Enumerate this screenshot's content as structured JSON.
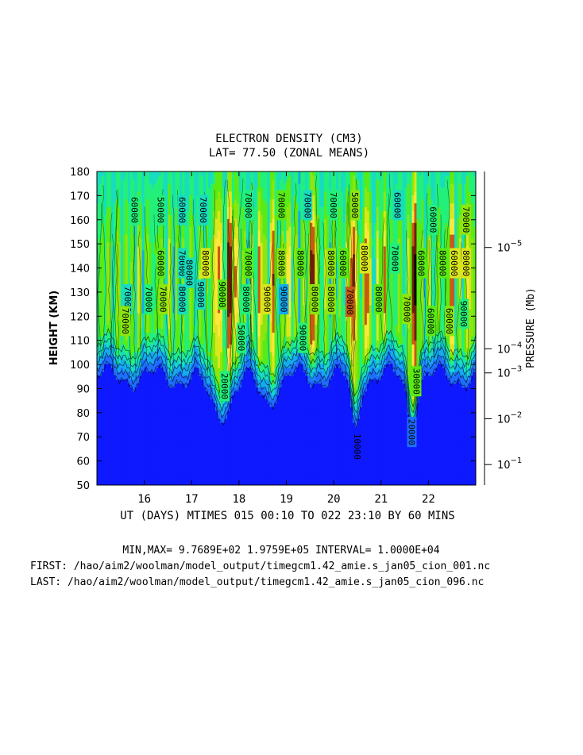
{
  "chart_data": {
    "type": "heatmap",
    "title": "ELECTRON DENSITY (CM3)",
    "subtitle": "LAT= 77.50 (ZONAL MEANS)",
    "xlabel": "UT (DAYS) MTIMES 015 00:10 TO 022 23:10 BY    60 MINS",
    "ylabel": "HEIGHT (KM)",
    "y2label": "PRESSURE (Mb)",
    "xlim": [
      15.0,
      23.0
    ],
    "ylim": [
      50,
      180
    ],
    "x_ticks": [
      16,
      17,
      18,
      19,
      20,
      21,
      22
    ],
    "y_ticks": [
      50,
      60,
      70,
      80,
      90,
      100,
      110,
      120,
      130,
      140,
      150,
      160,
      170,
      180
    ],
    "pressure_ticks": [
      {
        "base": "10",
        "exp": "−5",
        "height": 148.5
      },
      {
        "base": "10",
        "exp": "−4",
        "height": 106.5
      },
      {
        "base": "10",
        "exp": "−3",
        "height": 96.5
      },
      {
        "base": "10",
        "exp": "−2",
        "height": 77.5
      },
      {
        "base": "10",
        "exp": "−1",
        "height": 58.5
      }
    ],
    "contour_interval": 10000,
    "min_value": 976.89,
    "max_value": 197590,
    "color_levels": [
      {
        "min": 0,
        "color": "#0f19ff"
      },
      {
        "min": 20000,
        "color": "#1e6eff"
      },
      {
        "min": 30000,
        "color": "#14aaf0"
      },
      {
        "min": 40000,
        "color": "#18dcc0"
      },
      {
        "min": 50000,
        "color": "#22f07a"
      },
      {
        "min": 60000,
        "color": "#5aeb14"
      },
      {
        "min": 70000,
        "color": "#8ee60e"
      },
      {
        "min": 80000,
        "color": "#dce61c"
      },
      {
        "min": 90000,
        "color": "#ffe63c"
      },
      {
        "min": 100000,
        "color": "#c85a14"
      },
      {
        "min": 120000,
        "color": "#6e1e0a"
      },
      {
        "min": 150000,
        "color": "#000000"
      }
    ],
    "contour_labels": [
      {
        "text": "60000",
        "x": 15.8,
        "y": 164
      },
      {
        "text": "50000",
        "x": 16.35,
        "y": 164
      },
      {
        "text": "60000",
        "x": 16.8,
        "y": 164
      },
      {
        "text": "70000",
        "x": 17.25,
        "y": 164
      },
      {
        "text": "70000",
        "x": 18.2,
        "y": 166
      },
      {
        "text": "70000",
        "x": 18.9,
        "y": 166
      },
      {
        "text": "70000",
        "x": 19.45,
        "y": 166
      },
      {
        "text": "70000",
        "x": 20.0,
        "y": 166
      },
      {
        "text": "50000",
        "x": 20.45,
        "y": 166
      },
      {
        "text": "60000",
        "x": 21.35,
        "y": 166
      },
      {
        "text": "60000",
        "x": 22.1,
        "y": 160
      },
      {
        "text": "70000",
        "x": 22.8,
        "y": 160
      },
      {
        "text": "60000",
        "x": 16.35,
        "y": 142
      },
      {
        "text": "70000",
        "x": 16.8,
        "y": 142
      },
      {
        "text": "80000",
        "x": 16.95,
        "y": 138
      },
      {
        "text": "80000",
        "x": 17.3,
        "y": 142
      },
      {
        "text": "70000",
        "x": 18.2,
        "y": 142
      },
      {
        "text": "80000",
        "x": 18.9,
        "y": 142
      },
      {
        "text": "80000",
        "x": 19.3,
        "y": 142
      },
      {
        "text": "80000",
        "x": 19.95,
        "y": 142
      },
      {
        "text": "60000",
        "x": 20.2,
        "y": 142
      },
      {
        "text": "80000",
        "x": 20.65,
        "y": 144
      },
      {
        "text": "70000",
        "x": 21.3,
        "y": 144
      },
      {
        "text": "60000",
        "x": 21.85,
        "y": 142
      },
      {
        "text": "80000",
        "x": 22.3,
        "y": 142
      },
      {
        "text": "60000",
        "x": 22.55,
        "y": 142
      },
      {
        "text": "80000",
        "x": 22.8,
        "y": 142
      },
      {
        "text": "70000",
        "x": 15.65,
        "y": 127
      },
      {
        "text": "70000",
        "x": 16.1,
        "y": 127
      },
      {
        "text": "70000",
        "x": 16.4,
        "y": 127
      },
      {
        "text": "80000",
        "x": 16.8,
        "y": 127
      },
      {
        "text": "90000",
        "x": 17.2,
        "y": 129
      },
      {
        "text": "90000",
        "x": 17.65,
        "y": 129
      },
      {
        "text": "80000",
        "x": 18.15,
        "y": 127
      },
      {
        "text": "90000",
        "x": 18.6,
        "y": 127
      },
      {
        "text": "90000",
        "x": 18.95,
        "y": 127
      },
      {
        "text": "80000",
        "x": 19.6,
        "y": 127
      },
      {
        "text": "80000",
        "x": 19.95,
        "y": 127
      },
      {
        "text": "70000",
        "x": 20.35,
        "y": 126
      },
      {
        "text": "80000",
        "x": 20.95,
        "y": 127
      },
      {
        "text": "70000",
        "x": 21.55,
        "y": 123
      },
      {
        "text": "60000",
        "x": 22.05,
        "y": 118
      },
      {
        "text": "60000",
        "x": 22.45,
        "y": 118
      },
      {
        "text": "90000",
        "x": 22.75,
        "y": 121
      },
      {
        "text": "70000",
        "x": 15.6,
        "y": 118
      },
      {
        "text": "50000",
        "x": 18.05,
        "y": 111
      },
      {
        "text": "90000",
        "x": 19.35,
        "y": 111
      },
      {
        "text": "20000",
        "x": 17.7,
        "y": 91
      },
      {
        "text": "30000",
        "x": 21.75,
        "y": 93
      },
      {
        "text": "20000",
        "x": 21.65,
        "y": 72
      },
      {
        "text": "10000",
        "x": 20.5,
        "y": 66
      }
    ],
    "grid": false
  },
  "footer": {
    "line1": "MIN,MAX=  9.7689E+02  1.9759E+05 INTERVAL=  1.0000E+04",
    "line2": "FIRST: /hao/aim2/woolman/model_output/timegcm1.42_amie.s_jan05_cion_001.nc",
    "line3": "LAST:  /hao/aim2/woolman/model_output/timegcm1.42_amie.s_jan05_cion_096.nc"
  }
}
